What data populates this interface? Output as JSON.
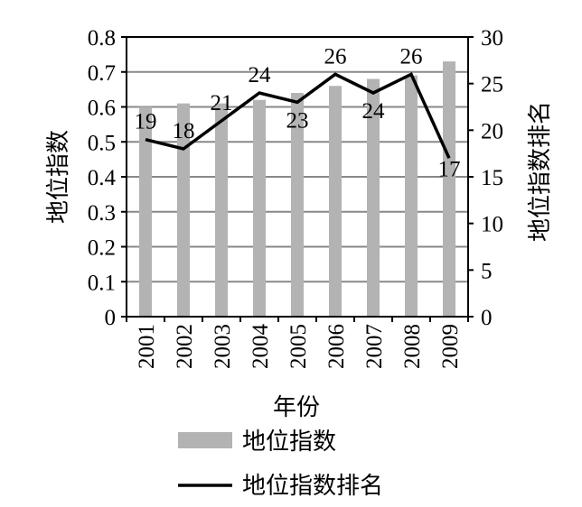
{
  "chart_data": {
    "type": "bar",
    "categories": [
      "2001",
      "2002",
      "2003",
      "2004",
      "2005",
      "2006",
      "2007",
      "2008",
      "2009"
    ],
    "series": [
      {
        "name": "地位指数",
        "type": "bar",
        "axis": "left",
        "values": [
          0.6,
          0.61,
          0.61,
          0.62,
          0.64,
          0.66,
          0.68,
          0.69,
          0.73
        ]
      },
      {
        "name": "地位指数排名",
        "type": "line",
        "axis": "right",
        "values": [
          19,
          18,
          21,
          24,
          23,
          26,
          24,
          26,
          17
        ]
      }
    ],
    "xlabel": "年份",
    "ylabel": "地位指数",
    "y2label": "地位指数排名",
    "ylim": [
      0,
      0.8
    ],
    "y2lim": [
      0,
      30
    ],
    "yticks": [
      "0",
      "0.1",
      "0.2",
      "0.3",
      "0.4",
      "0.5",
      "0.6",
      "0.7",
      "0.8"
    ],
    "y2ticks": [
      "0",
      "5",
      "10",
      "15",
      "20",
      "25",
      "30"
    ],
    "data_labels": [
      "19",
      "18",
      "21",
      "24",
      "23",
      "26",
      "24",
      "26",
      "17"
    ],
    "grid": true,
    "legend_position": "bottom",
    "colors": {
      "bar": "#b3b3b3",
      "line": "#000000",
      "grid": "#888888",
      "axis": "#000000"
    }
  }
}
